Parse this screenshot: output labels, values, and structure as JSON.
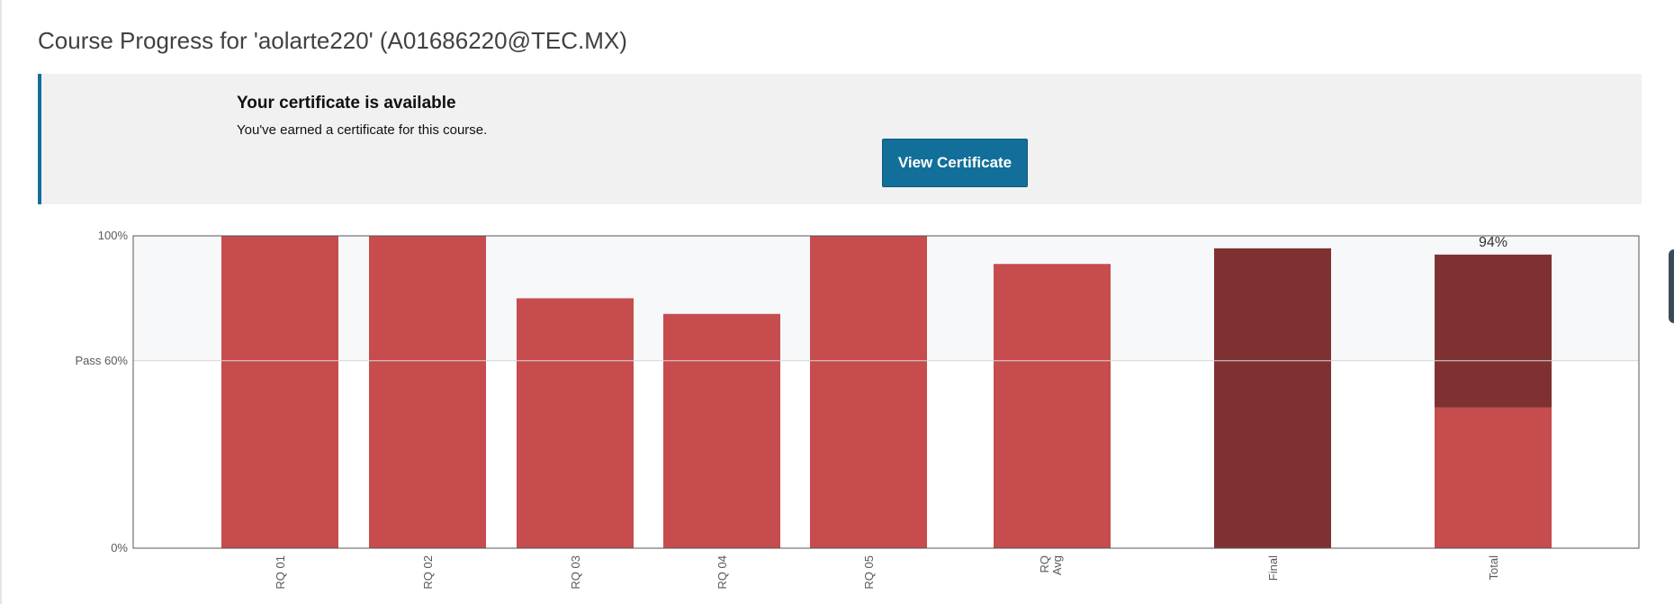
{
  "page": {
    "title": "Course Progress for 'aolarte220' (A01686220@TEC.MX)"
  },
  "certificate": {
    "title": "Your certificate is available",
    "message": "You've earned a certificate for this course.",
    "button_label": "View Certificate"
  },
  "colors": {
    "accent": "#126f9a",
    "bar": "#c64c4e",
    "bar_dark": "#7f3132",
    "pass_band": "#f7f8fa"
  },
  "chart_data": {
    "type": "bar",
    "categories": [
      "RQ 01",
      "RQ 02",
      "RQ 03",
      "RQ 04",
      "RQ 05",
      "RQ Avg",
      "Final",
      "Total"
    ],
    "values": [
      100,
      100,
      80,
      75,
      100,
      91,
      96,
      94
    ],
    "total_breakdown": {
      "assignment_portion": 45,
      "final_portion": 49
    },
    "value_labels": {
      "Total": "94%"
    },
    "y_ticks": [
      {
        "value": 100,
        "label": "100%"
      },
      {
        "value": 60,
        "label": "Pass 60%"
      },
      {
        "value": 0,
        "label": "0%"
      }
    ],
    "pass_threshold": 60,
    "ylim": [
      0,
      100
    ],
    "title": "",
    "xlabel": "",
    "ylabel": ""
  }
}
